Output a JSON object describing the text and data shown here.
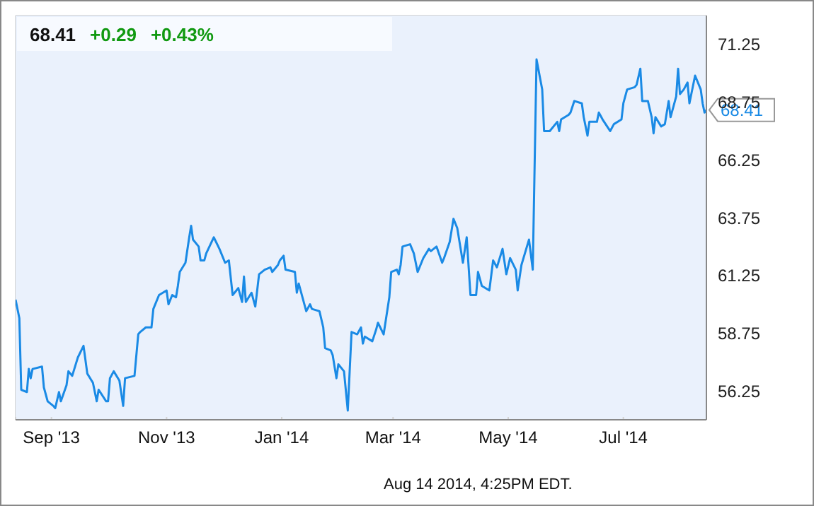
{
  "chart_data": {
    "type": "line",
    "title": "68.41",
    "annotations": [
      "+0.29",
      "+0.43%",
      {
        "text": "68.41",
        "x": "2014-08-14",
        "y": 68.41
      },
      "Aug 14 2014, 4:25PM EDT."
    ],
    "x": [
      "2013-08-13",
      "2013-08-15",
      "2013-08-16",
      "2013-08-19",
      "2013-08-20",
      "2013-08-21",
      "2013-08-22",
      "2013-08-27",
      "2013-08-28",
      "2013-08-30",
      "2013-09-02",
      "2013-09-03",
      "2013-09-05",
      "2013-09-06",
      "2013-09-09",
      "2013-09-10",
      "2013-09-12",
      "2013-09-15",
      "2013-09-18",
      "2013-09-20",
      "2013-09-23",
      "2013-09-25",
      "2013-09-26",
      "2013-09-30",
      "2013-10-01",
      "2013-10-02",
      "2013-10-04",
      "2013-10-07",
      "2013-10-09",
      "2013-10-10",
      "2013-10-15",
      "2013-10-17",
      "2013-10-18",
      "2013-10-21",
      "2013-10-24",
      "2013-10-25",
      "2013-10-28",
      "2013-10-30",
      "2013-11-01",
      "2013-11-02",
      "2013-11-04",
      "2013-11-06",
      "2013-11-07",
      "2013-11-08",
      "2013-11-11",
      "2013-11-13",
      "2013-11-14",
      "2013-11-15",
      "2013-11-18",
      "2013-11-19",
      "2013-11-21",
      "2013-11-22",
      "2013-11-26",
      "2013-11-29",
      "2013-12-02",
      "2013-12-04",
      "2013-12-06",
      "2013-12-09",
      "2013-12-11",
      "2013-12-12",
      "2013-12-13",
      "2013-12-16",
      "2013-12-18",
      "2013-12-19",
      "2013-12-20",
      "2013-12-23",
      "2013-12-26",
      "2013-12-27",
      "2013-12-30",
      "2013-12-31",
      "2014-01-02",
      "2014-01-03",
      "2014-01-08",
      "2014-01-09",
      "2014-01-10",
      "2014-01-14",
      "2014-01-16",
      "2014-01-17",
      "2014-01-21",
      "2014-01-23",
      "2014-01-24",
      "2014-01-27",
      "2014-01-28",
      "2014-01-30",
      "2014-01-31",
      "2014-02-03",
      "2014-02-05",
      "2014-02-06",
      "2014-02-07",
      "2014-02-10",
      "2014-02-12",
      "2014-02-13",
      "2014-02-14",
      "2014-02-18",
      "2014-02-20",
      "2014-02-21",
      "2014-02-24",
      "2014-02-27",
      "2014-02-28",
      "2014-03-03",
      "2014-03-04",
      "2014-03-05",
      "2014-03-06",
      "2014-03-10",
      "2014-03-12",
      "2014-03-14",
      "2014-03-17",
      "2014-03-20",
      "2014-03-21",
      "2014-03-24",
      "2014-03-27",
      "2014-03-28",
      "2014-03-31",
      "2014-04-02",
      "2014-04-04",
      "2014-04-07",
      "2014-04-09",
      "2014-04-11",
      "2014-04-14",
      "2014-04-15",
      "2014-04-17",
      "2014-04-21",
      "2014-04-23",
      "2014-04-25",
      "2014-04-28",
      "2014-04-30",
      "2014-05-02",
      "2014-05-05",
      "2014-05-06",
      "2014-05-08",
      "2014-05-12",
      "2014-05-14",
      "2014-05-16",
      "2014-05-19",
      "2014-05-20",
      "2014-05-23",
      "2014-05-27",
      "2014-05-28",
      "2014-05-29",
      "2014-06-02",
      "2014-06-03",
      "2014-06-05",
      "2014-06-09",
      "2014-06-10",
      "2014-06-12",
      "2014-06-13",
      "2014-06-17",
      "2014-06-18",
      "2014-06-20",
      "2014-06-24",
      "2014-06-26",
      "2014-06-30",
      "2014-07-01",
      "2014-07-03",
      "2014-07-07",
      "2014-07-08",
      "2014-07-10",
      "2014-07-11",
      "2014-07-14",
      "2014-07-16",
      "2014-07-17",
      "2014-07-18",
      "2014-07-21",
      "2014-07-23",
      "2014-07-25",
      "2014-07-26",
      "2014-07-29",
      "2014-07-30",
      "2014-07-31",
      "2014-08-02",
      "2014-08-04",
      "2014-08-05",
      "2014-08-08",
      "2014-08-11",
      "2014-08-12",
      "2014-08-13",
      "2014-08-14"
    ],
    "series": [
      {
        "color": "#1a8ae5",
        "values": [
          60.2,
          59.4,
          56.3,
          56.2,
          57.2,
          56.8,
          57.2,
          57.3,
          56.4,
          55.8,
          55.6,
          55.5,
          56.2,
          55.8,
          56.5,
          57.1,
          56.9,
          57.7,
          58.2,
          57.0,
          56.6,
          55.8,
          56.3,
          55.8,
          55.8,
          56.8,
          57.1,
          56.7,
          55.6,
          56.8,
          56.9,
          58.7,
          58.8,
          59.0,
          59.0,
          59.8,
          60.4,
          60.5,
          60.6,
          60.0,
          60.4,
          60.3,
          60.8,
          61.4,
          61.8,
          62.9,
          63.4,
          62.8,
          62.5,
          61.9,
          61.9,
          62.2,
          62.9,
          62.4,
          61.8,
          61.9,
          60.4,
          60.7,
          60.1,
          61.2,
          60.1,
          60.5,
          59.9,
          60.6,
          61.3,
          61.5,
          61.6,
          61.4,
          61.7,
          61.9,
          62.1,
          61.5,
          61.4,
          60.5,
          60.9,
          59.7,
          60.0,
          59.8,
          59.7,
          59.0,
          58.1,
          58.0,
          57.8,
          56.8,
          57.4,
          57.1,
          55.4,
          57.1,
          58.8,
          58.7,
          59.0,
          58.3,
          58.6,
          58.4,
          58.9,
          59.2,
          58.7,
          60.3,
          61.4,
          61.5,
          61.3,
          61.7,
          62.5,
          62.6,
          62.2,
          61.4,
          62.0,
          62.4,
          62.3,
          62.5,
          61.8,
          62.0,
          62.7,
          63.7,
          63.3,
          61.8,
          62.9,
          60.4,
          60.4,
          61.4,
          60.8,
          60.6,
          61.9,
          61.6,
          62.4,
          61.3,
          62.0,
          61.5,
          60.6,
          61.7,
          62.8,
          61.5,
          70.6,
          69.3,
          67.5,
          67.5,
          67.9,
          67.5,
          68.0,
          68.2,
          68.3,
          68.8,
          68.7,
          68.1,
          67.3,
          67.9,
          67.9,
          68.3,
          68.0,
          67.5,
          67.8,
          68.0,
          68.7,
          69.3,
          69.4,
          69.5,
          70.2,
          68.8,
          68.8,
          68.1,
          67.4,
          68.1,
          67.7,
          67.8,
          68.8,
          68.1,
          69.0,
          70.2,
          69.1,
          69.3,
          69.6,
          68.7,
          69.9,
          69.3,
          68.7,
          68.3,
          68.41
        ]
      }
    ],
    "xlim": [
      "2013-08-13",
      "2014-08-14"
    ],
    "xticks": [
      {
        "value": "2013-09-01",
        "label": "Sep '13"
      },
      {
        "value": "2013-11-01",
        "label": "Nov '13"
      },
      {
        "value": "2014-01-01",
        "label": "Jan '14"
      },
      {
        "value": "2014-03-01",
        "label": "Mar '14"
      },
      {
        "value": "2014-05-01",
        "label": "May '14"
      },
      {
        "value": "2014-07-01",
        "label": "Jul '14"
      }
    ],
    "ylim": [
      55.0,
      72.5
    ],
    "yticks": [
      56.25,
      58.75,
      61.25,
      63.75,
      66.25,
      68.75,
      71.25
    ],
    "grid": true,
    "legend": false,
    "marker": "none",
    "line_style": "solid"
  }
}
